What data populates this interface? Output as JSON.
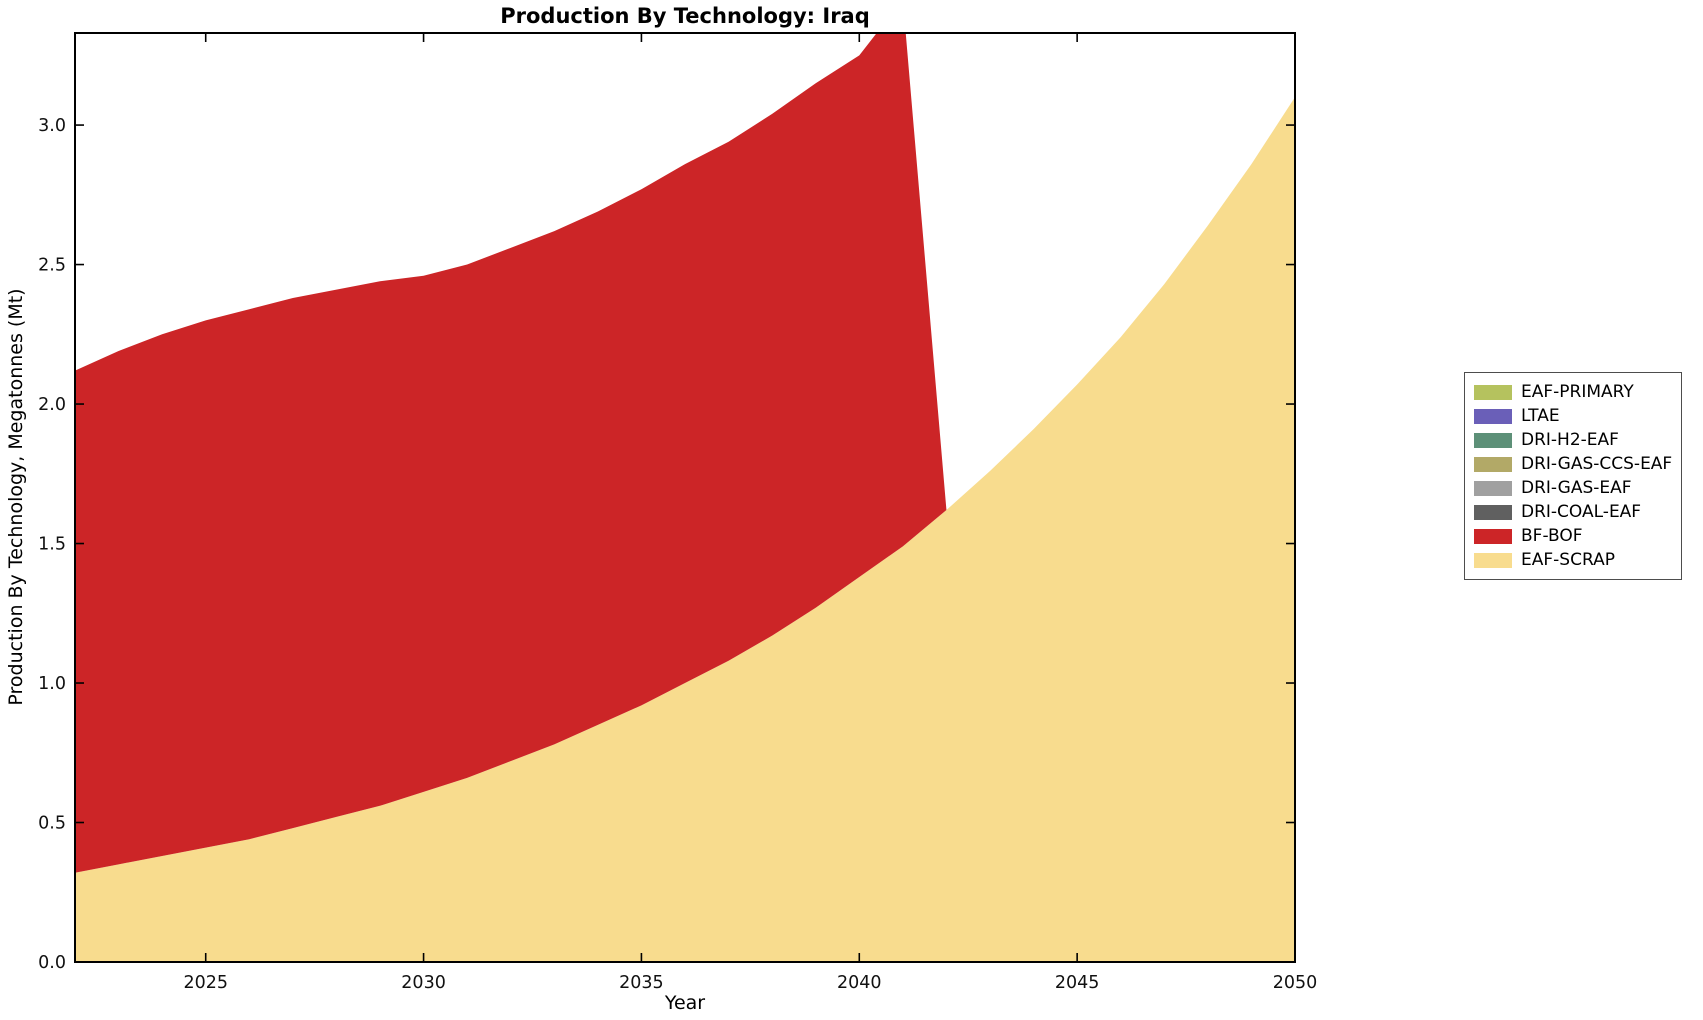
{
  "chart_data": {
    "type": "area",
    "stacked": true,
    "title": "Production By Technology: Iraq",
    "xlabel": "Year",
    "ylabel": "Production By Technology, Megatonnes (Mt)",
    "xlim": [
      2022,
      2050
    ],
    "ylim": [
      0,
      3.33
    ],
    "grid": false,
    "legend_position": "right-outside",
    "xticks": [
      2025,
      2030,
      2035,
      2040,
      2045,
      2050
    ],
    "xtick_labels": [
      "2025",
      "2030",
      "2035",
      "2040",
      "2045",
      "2050"
    ],
    "yticks": [
      0,
      0.5,
      1.0,
      1.5,
      2.0,
      2.5,
      3.0
    ],
    "ytick_labels": [
      "0.0",
      "0.5",
      "1.0",
      "1.5",
      "2.0",
      "2.5",
      "3.0"
    ],
    "x": [
      2022,
      2023,
      2024,
      2025,
      2026,
      2027,
      2028,
      2029,
      2030,
      2031,
      2032,
      2033,
      2034,
      2035,
      2036,
      2037,
      2038,
      2039,
      2040,
      2041,
      2042,
      2043,
      2044,
      2045,
      2046,
      2047,
      2048,
      2049,
      2050
    ],
    "series": [
      {
        "name": "EAF-PRIMARY",
        "color": "#b5c25e",
        "values": [
          0,
          0,
          0,
          0,
          0,
          0,
          0,
          0,
          0,
          0,
          0,
          0,
          0,
          0,
          0,
          0,
          0,
          0,
          0,
          0,
          0,
          0,
          0,
          0,
          0,
          0,
          0,
          0,
          0
        ]
      },
      {
        "name": "LTAE",
        "color": "#6a5fb8",
        "values": [
          0,
          0,
          0,
          0,
          0,
          0,
          0,
          0,
          0,
          0,
          0,
          0,
          0,
          0,
          0,
          0,
          0,
          0,
          0,
          0,
          0,
          0,
          0,
          0,
          0,
          0,
          0,
          0,
          0
        ]
      },
      {
        "name": "DRI-H2-EAF",
        "color": "#5d9078",
        "values": [
          0,
          0,
          0,
          0,
          0,
          0,
          0,
          0,
          0,
          0,
          0,
          0,
          0,
          0,
          0,
          0,
          0,
          0,
          0,
          0,
          0,
          0,
          0,
          0,
          0,
          0,
          0,
          0,
          0
        ]
      },
      {
        "name": "DRI-GAS-CCS-EAF",
        "color": "#b2a967",
        "values": [
          0,
          0,
          0,
          0,
          0,
          0,
          0,
          0,
          0,
          0,
          0,
          0,
          0,
          0,
          0,
          0,
          0,
          0,
          0,
          0,
          0,
          0,
          0,
          0,
          0,
          0,
          0,
          0,
          0
        ]
      },
      {
        "name": "DRI-GAS-EAF",
        "color": "#a0a0a0",
        "values": [
          0,
          0,
          0,
          0,
          0,
          0,
          0,
          0,
          0,
          0,
          0,
          0,
          0,
          0,
          0,
          0,
          0,
          0,
          0,
          0,
          0,
          0,
          0,
          0,
          0,
          0,
          0,
          0,
          0
        ]
      },
      {
        "name": "DRI-COAL-EAF",
        "color": "#606060",
        "values": [
          0,
          0,
          0,
          0,
          0,
          0,
          0,
          0,
          0,
          0,
          0,
          0,
          0,
          0,
          0,
          0,
          0,
          0,
          0,
          0,
          0,
          0,
          0,
          0,
          0,
          0,
          0,
          0,
          0
        ]
      },
      {
        "name": "BF-BOF",
        "color": "#cc2527",
        "values": [
          1.8,
          1.84,
          1.87,
          1.89,
          1.9,
          1.9,
          1.89,
          1.88,
          1.85,
          1.84,
          1.84,
          1.84,
          1.84,
          1.85,
          1.86,
          1.86,
          1.87,
          1.88,
          1.87,
          1.96,
          0,
          0,
          0,
          0,
          0,
          0,
          0,
          0,
          0
        ]
      },
      {
        "name": "EAF-SCRAP",
        "color": "#f8dc8e",
        "values": [
          0.32,
          0.35,
          0.38,
          0.41,
          0.44,
          0.48,
          0.52,
          0.56,
          0.61,
          0.66,
          0.72,
          0.78,
          0.85,
          0.92,
          1.0,
          1.08,
          1.17,
          1.27,
          1.38,
          1.49,
          1.62,
          1.76,
          1.91,
          2.07,
          2.24,
          2.43,
          2.64,
          2.86,
          3.1
        ]
      }
    ]
  }
}
